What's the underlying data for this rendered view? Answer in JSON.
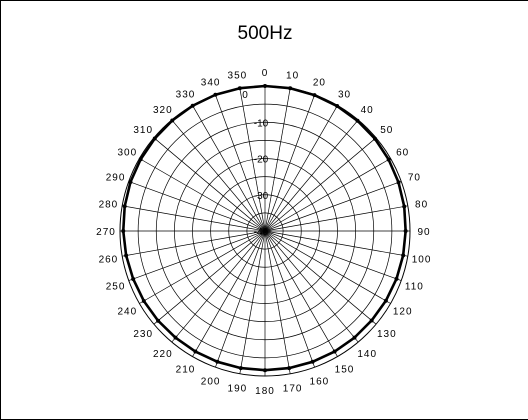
{
  "chart_data": {
    "type": "polar-line",
    "title": "500Hz",
    "angular_unit": "degrees",
    "angular_direction": "clockwise",
    "zero_angle": "top",
    "angle_ticks": [
      0,
      10,
      20,
      30,
      40,
      50,
      60,
      70,
      80,
      90,
      100,
      110,
      120,
      130,
      140,
      150,
      160,
      170,
      180,
      190,
      200,
      210,
      220,
      230,
      240,
      250,
      260,
      270,
      280,
      290,
      300,
      310,
      320,
      330,
      340,
      350
    ],
    "radial_range": [
      -40,
      0
    ],
    "radial_ticks": [
      0,
      -10,
      -20,
      -30,
      -40
    ],
    "grid": true,
    "series": [
      {
        "color": "#000000",
        "angles": [
          0,
          10,
          20,
          30,
          40,
          50,
          60,
          70,
          80,
          90,
          100,
          110,
          120,
          130,
          140,
          150,
          160,
          170,
          180,
          190,
          200,
          210,
          220,
          230,
          240,
          250,
          260,
          270,
          280,
          290,
          300,
          310,
          320,
          330,
          340,
          350
        ],
        "values": [
          0,
          0,
          -0.1,
          -0.2,
          -0.3,
          -0.4,
          -0.6,
          -0.8,
          -1,
          -1.2,
          -1.3,
          -1.4,
          -1.5,
          -1.6,
          -1.6,
          -1.6,
          -1.6,
          -1.6,
          -1.6,
          -1.6,
          -1.6,
          -1.6,
          -1.6,
          -1.5,
          -1.4,
          -1.3,
          -1.1,
          -0.9,
          -0.7,
          -0.5,
          -0.4,
          -0.3,
          -0.2,
          -0.1,
          0,
          0
        ]
      }
    ]
  }
}
